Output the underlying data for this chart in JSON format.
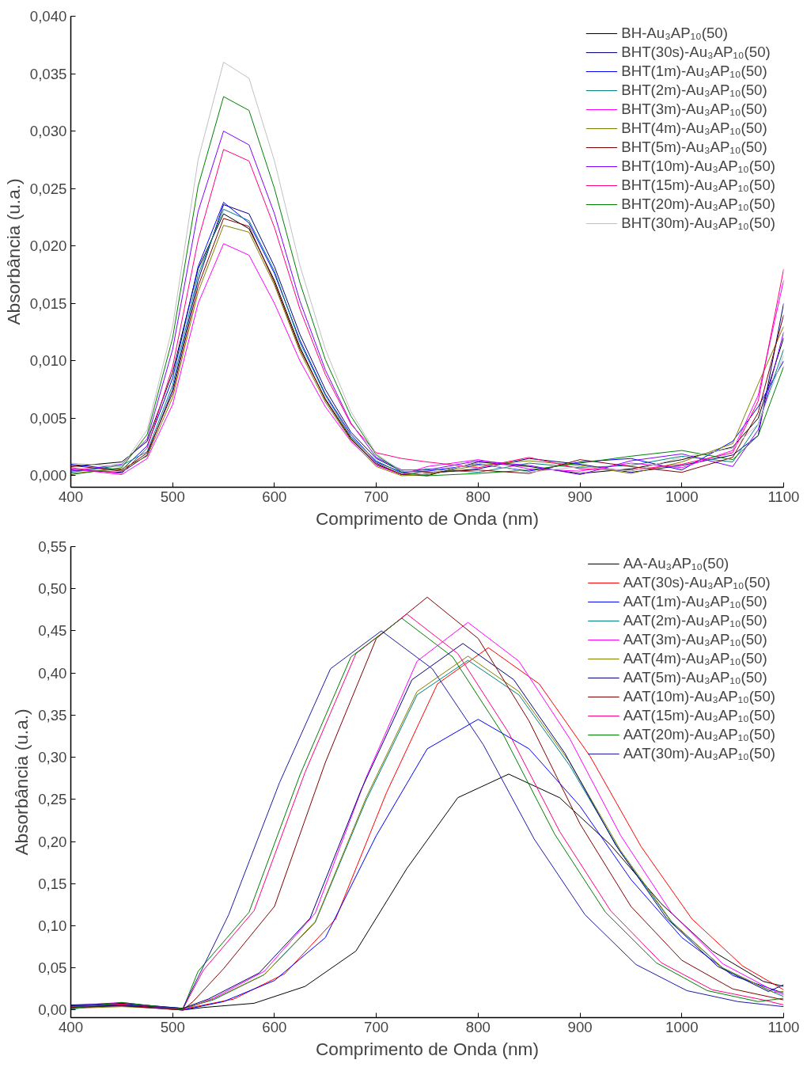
{
  "chart_data": [
    {
      "type": "line",
      "xlabel": "Comprimento de Onda (nm)",
      "ylabel": "Absorbância (u.a.)",
      "xlim": [
        400,
        1100
      ],
      "ylim": [
        -0.001,
        0.04
      ],
      "xticks": [
        400,
        500,
        600,
        700,
        800,
        900,
        1000,
        1100
      ],
      "yticks": [
        {
          "value": 0,
          "label": "0,000"
        },
        {
          "value": 0.005,
          "label": "0,005"
        },
        {
          "value": 0.01,
          "label": "0,010"
        },
        {
          "value": 0.015,
          "label": "0,015"
        },
        {
          "value": 0.02,
          "label": "0,020"
        },
        {
          "value": 0.025,
          "label": "0,025"
        },
        {
          "value": 0.03,
          "label": "0,030"
        },
        {
          "value": 0.035,
          "label": "0,035"
        },
        {
          "value": 0.04,
          "label": "0,040"
        }
      ],
      "legend": "top right",
      "x": [
        400,
        450,
        475,
        500,
        525,
        550,
        575,
        600,
        625,
        650,
        675,
        700,
        725,
        750,
        800,
        850,
        900,
        950,
        1000,
        1050,
        1075,
        1100
      ],
      "series": [
        {
          "name": "BH-Au₃AP₁₀(50)",
          "color": "#000000",
          "values": [
            0.0008,
            0.0012,
            0.003,
            0.009,
            0.018,
            0.0228,
            0.0215,
            0.017,
            0.0112,
            0.0066,
            0.0032,
            0.001,
            0.0001,
            0,
            0.0012,
            0.0008,
            0.0002,
            0.0006,
            0.0014,
            0.0025,
            0.005,
            0.012
          ]
        },
        {
          "name": "BHT(30s)-Au₃AP₁₀(50)",
          "color": "#000080",
          "values": [
            0.0005,
            0.0003,
            0.0018,
            0.0075,
            0.017,
            0.0236,
            0.0228,
            0.0182,
            0.0123,
            0.0075,
            0.0038,
            0.0015,
            0.0004,
            0.0002,
            0.0006,
            0.0015,
            0.001,
            0.0003,
            0.0009,
            0.0018,
            0.0035,
            0.015
          ]
        },
        {
          "name": "BHT(1m)-Au₃AP₁₀(50)",
          "color": "#0000ff",
          "values": [
            0.001,
            0.0005,
            0.0026,
            0.0085,
            0.0182,
            0.0238,
            0.022,
            0.0176,
            0.0118,
            0.0071,
            0.0036,
            0.0012,
            0.0003,
            0.0004,
            0.001,
            0.0004,
            0.0012,
            0.0015,
            0.0005,
            0.003,
            0.006,
            0.01
          ]
        },
        {
          "name": "BHT(2m)-Au₃AP₁₀(50)",
          "color": "#008080",
          "values": [
            0.0003,
            0.0009,
            0.0021,
            0.0079,
            0.0175,
            0.0232,
            0.0222,
            0.0178,
            0.0116,
            0.007,
            0.0034,
            0.0013,
            0.0002,
            0.0006,
            0.0003,
            0.0011,
            0.0007,
            0.0009,
            0.0017,
            0.0012,
            0.0045,
            0.011
          ]
        },
        {
          "name": "BHT(3m)-Au₃AP₁₀(50)",
          "color": "#ff00ff",
          "values": [
            0.0006,
            0.0001,
            0.0015,
            0.0062,
            0.015,
            0.0202,
            0.0192,
            0.015,
            0.01,
            0.006,
            0.003,
            0.0009,
            0.0001,
            0.0008,
            0.0014,
            0.0006,
            0.0004,
            0.0011,
            0.0007,
            0.0022,
            0.007,
            0.017
          ]
        },
        {
          "name": "BHT(4m)-Au₃AP₁₀(50)",
          "color": "#808000",
          "values": [
            0.0002,
            0.0006,
            0.0017,
            0.0068,
            0.016,
            0.0218,
            0.0212,
            0.0166,
            0.0108,
            0.0064,
            0.0031,
            0.0008,
            0,
            0.0001,
            0.0009,
            0.0013,
            0.0009,
            0.0002,
            0.0012,
            0.0028,
            0.008,
            0.013
          ]
        },
        {
          "name": "BHT(5m)-Au₃AP₁₀(50)",
          "color": "#800000",
          "values": [
            0.0009,
            0.0004,
            0.002,
            0.0072,
            0.0165,
            0.0224,
            0.0217,
            0.0168,
            0.011,
            0.0067,
            0.0033,
            0.0011,
            0.0001,
            0.0003,
            0.0005,
            0.0002,
            0.0014,
            0.0008,
            0.0003,
            0.0016,
            0.0055,
            0.014
          ]
        },
        {
          "name": "BHT(10m)-Au₃AP₁₀(50)",
          "color": "#8000ff",
          "values": [
            0.0004,
            0.001,
            0.0032,
            0.011,
            0.023,
            0.03,
            0.0288,
            0.0228,
            0.0152,
            0.0092,
            0.0046,
            0.0016,
            0.0005,
            0.0005,
            0.0013,
            0.0009,
            0.0001,
            0.0013,
            0.0019,
            0.0008,
            0.004,
            0.0125
          ]
        },
        {
          "name": "BHT(15m)-Au₃AP₁₀(50)",
          "color": "#ff0080",
          "values": [
            0.0007,
            0.0002,
            0.0024,
            0.0095,
            0.0205,
            0.0284,
            0.0274,
            0.0216,
            0.0145,
            0.0088,
            0.0045,
            0.002,
            0.0015,
            0.0012,
            0.0007,
            0.0016,
            0.0006,
            0.0005,
            0.001,
            0.002,
            0.0065,
            0.018
          ]
        },
        {
          "name": "BHT(20m)-Au₃AP₁₀(50)",
          "color": "#008000",
          "values": [
            0.0001,
            0.0007,
            0.0036,
            0.012,
            0.0252,
            0.033,
            0.0318,
            0.025,
            0.0168,
            0.0101,
            0.0052,
            0.0018,
            0.0003,
            0,
            0.0002,
            0.0005,
            0.0011,
            0.0017,
            0.0022,
            0.0014,
            0.0035,
            0.0095
          ]
        },
        {
          "name": "BHT(30m)-Au₃AP₁₀(50)",
          "color": "#c0c0c0",
          "values": [
            0.0011,
            0.0008,
            0.004,
            0.013,
            0.0275,
            0.036,
            0.0346,
            0.0274,
            0.0183,
            0.011,
            0.0056,
            0.0019,
            0.0004,
            0.0002,
            0.0011,
            0.0003,
            0.0008,
            0.0004,
            0.0016,
            0.0024,
            0.0045,
            0.0105
          ]
        }
      ]
    },
    {
      "type": "line",
      "xlabel": "Comprimento de Onda (nm)",
      "ylabel": "Absorbância (u.a.)",
      "xlim": [
        400,
        1100
      ],
      "ylim": [
        -0.009,
        0.55
      ],
      "xticks": [
        400,
        500,
        600,
        700,
        800,
        900,
        1000,
        1100
      ],
      "yticks": [
        {
          "value": 0,
          "label": "0,00"
        },
        {
          "value": 0.05,
          "label": "0,05"
        },
        {
          "value": 0.1,
          "label": "0,10"
        },
        {
          "value": 0.15,
          "label": "0,15"
        },
        {
          "value": 0.2,
          "label": "0,20"
        },
        {
          "value": 0.25,
          "label": "0,25"
        },
        {
          "value": 0.3,
          "label": "0,30"
        },
        {
          "value": 0.35,
          "label": "0,35"
        },
        {
          "value": 0.4,
          "label": "0,40"
        },
        {
          "value": 0.45,
          "label": "0,45"
        },
        {
          "value": 0.5,
          "label": "0,50"
        },
        {
          "value": 0.55,
          "label": "0,55"
        }
      ],
      "legend": "top right",
      "series": [
        {
          "name": "AA-Au₃AP₁₀(50)",
          "color": "#000000",
          "x": [
            400,
            450,
            510,
            530,
            580,
            630,
            680,
            730,
            780,
            830,
            880,
            930,
            980,
            1030,
            1080,
            1100
          ],
          "values": [
            0.002,
            0.006,
            0,
            0.003,
            0.008,
            0.028,
            0.07,
            0.168,
            0.252,
            0.28,
            0.252,
            0.196,
            0.126,
            0.07,
            0.034,
            0.028
          ]
        },
        {
          "name": "AAT(30s)-Au₃AP₁₀(50)",
          "color": "#ff0000",
          "x": [
            400,
            450,
            510,
            560,
            610,
            660,
            710,
            760,
            810,
            860,
            910,
            960,
            1010,
            1060,
            1100
          ],
          "values": [
            0.003,
            0.007,
            0.001,
            0.013,
            0.043,
            0.108,
            0.258,
            0.387,
            0.43,
            0.387,
            0.301,
            0.194,
            0.108,
            0.052,
            0.024
          ]
        },
        {
          "name": "AAT(1m)-Au₃AP₁₀(50)",
          "color": "#0000ff",
          "x": [
            400,
            450,
            510,
            550,
            600,
            650,
            700,
            750,
            800,
            850,
            900,
            950,
            1000,
            1050,
            1100
          ],
          "values": [
            0.004,
            0.005,
            0,
            0.01,
            0.035,
            0.086,
            0.207,
            0.31,
            0.345,
            0.31,
            0.242,
            0.155,
            0.086,
            0.041,
            0.02
          ]
        },
        {
          "name": "AAT(2m)-Au₃AP₁₀(50)",
          "color": "#008080",
          "x": [
            400,
            450,
            510,
            540,
            590,
            640,
            690,
            740,
            790,
            840,
            890,
            940,
            990,
            1040,
            1090,
            1100
          ],
          "values": [
            0.001,
            0.008,
            0.002,
            0.012,
            0.042,
            0.104,
            0.249,
            0.374,
            0.415,
            0.374,
            0.29,
            0.187,
            0.104,
            0.05,
            0.021,
            0.016
          ]
        },
        {
          "name": "AAT(3m)-Au₃AP₁₀(50)",
          "color": "#ff00ff",
          "x": [
            400,
            450,
            510,
            540,
            590,
            640,
            690,
            740,
            790,
            840,
            890,
            940,
            990,
            1040,
            1090,
            1100
          ],
          "values": [
            0.005,
            0.009,
            0,
            0.014,
            0.046,
            0.115,
            0.276,
            0.414,
            0.46,
            0.414,
            0.322,
            0.207,
            0.115,
            0.055,
            0.023,
            0.018
          ]
        },
        {
          "name": "AAT(4m)-Au₃AP₁₀(50)",
          "color": "#808000",
          "x": [
            400,
            450,
            510,
            540,
            590,
            640,
            690,
            740,
            790,
            840,
            890,
            940,
            990,
            1040,
            1090,
            1100
          ],
          "values": [
            0.002,
            0.004,
            0.001,
            0.013,
            0.042,
            0.105,
            0.252,
            0.378,
            0.42,
            0.378,
            0.294,
            0.189,
            0.105,
            0.05,
            0.021,
            0.022
          ]
        },
        {
          "name": "AAT(5m)-Au₃AP₁₀(50)",
          "color": "#000080",
          "x": [
            400,
            450,
            510,
            535,
            585,
            635,
            685,
            735,
            785,
            835,
            885,
            935,
            985,
            1035,
            1085,
            1100
          ],
          "values": [
            0.006,
            0.008,
            0.002,
            0.013,
            0.044,
            0.109,
            0.261,
            0.392,
            0.435,
            0.392,
            0.305,
            0.196,
            0.109,
            0.052,
            0.022,
            0.03
          ]
        },
        {
          "name": "AAT(10m)-Au₃AP₁₀(50)",
          "color": "#800000",
          "x": [
            400,
            450,
            510,
            520,
            550,
            600,
            650,
            700,
            750,
            800,
            850,
            900,
            950,
            1000,
            1050,
            1100
          ],
          "values": [
            0.003,
            0.005,
            0,
            0.01,
            0.049,
            0.123,
            0.294,
            0.441,
            0.49,
            0.441,
            0.343,
            0.221,
            0.123,
            0.059,
            0.025,
            0.012
          ]
        },
        {
          "name": "AAT(15m)-Au₃AP₁₀(50)",
          "color": "#ff0080",
          "x": [
            400,
            450,
            510,
            530,
            580,
            630,
            680,
            730,
            780,
            830,
            880,
            930,
            980,
            1030,
            1080,
            1100
          ],
          "values": [
            0.004,
            0.007,
            0.001,
            0.047,
            0.118,
            0.282,
            0.423,
            0.47,
            0.423,
            0.329,
            0.212,
            0.118,
            0.056,
            0.024,
            0.012,
            0.006
          ]
        },
        {
          "name": "AAT(20m)-Au₃AP₁₀(50)",
          "color": "#008000",
          "x": [
            400,
            450,
            510,
            525,
            575,
            625,
            675,
            725,
            775,
            825,
            875,
            925,
            975,
            1025,
            1075,
            1100
          ],
          "values": [
            0.002,
            0.009,
            0.001,
            0.046,
            0.116,
            0.279,
            0.419,
            0.465,
            0.419,
            0.326,
            0.209,
            0.116,
            0.056,
            0.023,
            0.01,
            0.014
          ]
        },
        {
          "name": "AAT(30m)-Au₃AP₁₀(50)",
          "color": "#1a1aa6",
          "x": [
            400,
            450,
            510,
            555,
            605,
            655,
            705,
            755,
            805,
            855,
            905,
            955,
            1005,
            1055,
            1100
          ],
          "values": [
            0.005,
            0.006,
            0.002,
            0.113,
            0.27,
            0.405,
            0.45,
            0.405,
            0.315,
            0.203,
            0.113,
            0.054,
            0.023,
            0.01,
            0.004
          ]
        }
      ]
    }
  ]
}
